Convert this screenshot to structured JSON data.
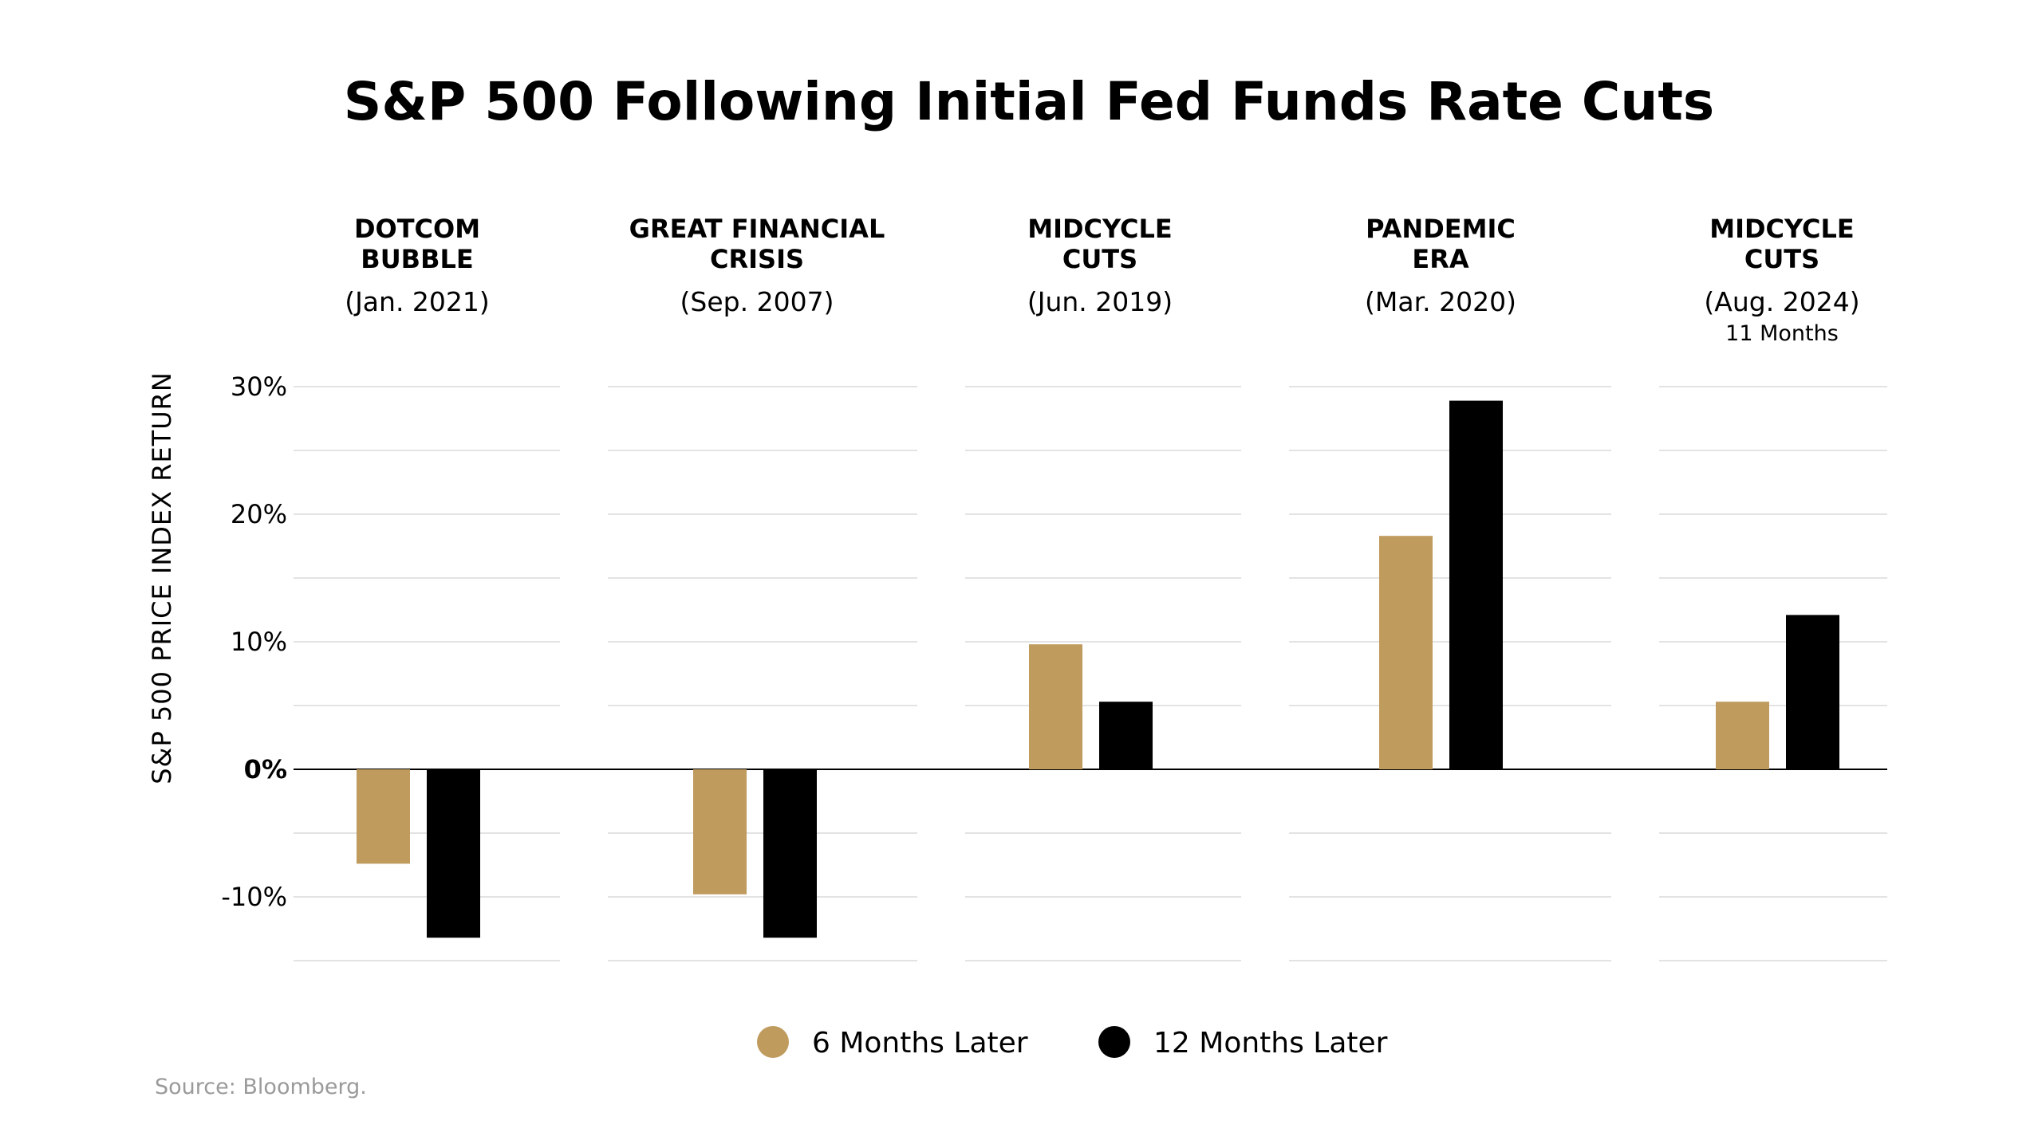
{
  "chart_data": {
    "type": "bar",
    "title": "S&P 500 Following Initial Fed Funds Rate Cuts",
    "ylabel": "S&P 500 PRICE INDEX RETURN",
    "ylim": [
      -15,
      30
    ],
    "yticks": [
      {
        "value": 30,
        "label": "30%"
      },
      {
        "value": 20,
        "label": "20%"
      },
      {
        "value": 10,
        "label": "10%"
      },
      {
        "value": 0,
        "label": "0%"
      },
      {
        "value": -10,
        "label": "-10%"
      }
    ],
    "grid": true,
    "legend_position": "bottom-center",
    "categories": [
      {
        "name": [
          "DOTCOM",
          "BUBBLE"
        ],
        "date": "(Jan. 2021)",
        "note": ""
      },
      {
        "name": [
          "GREAT FINANCIAL",
          "CRISIS"
        ],
        "date": "(Sep. 2007)",
        "note": ""
      },
      {
        "name": [
          "MIDCYCLE",
          "CUTS"
        ],
        "date": "(Jun. 2019)",
        "note": ""
      },
      {
        "name": [
          "PANDEMIC",
          "ERA"
        ],
        "date": "(Mar. 2020)",
        "note": ""
      },
      {
        "name": [
          "MIDCYCLE",
          "CUTS"
        ],
        "date": "(Aug. 2024)",
        "note": "11 Months"
      }
    ],
    "series": [
      {
        "name": "6 Months Later",
        "color": "#bf9b5e",
        "values": [
          -7.4,
          -9.8,
          9.8,
          18.3,
          5.3
        ]
      },
      {
        "name": "12 Months Later",
        "color": "#000000",
        "values": [
          -13.2,
          -13.2,
          5.3,
          28.9,
          12.1
        ]
      }
    ],
    "source": "Source: Bloomberg."
  }
}
